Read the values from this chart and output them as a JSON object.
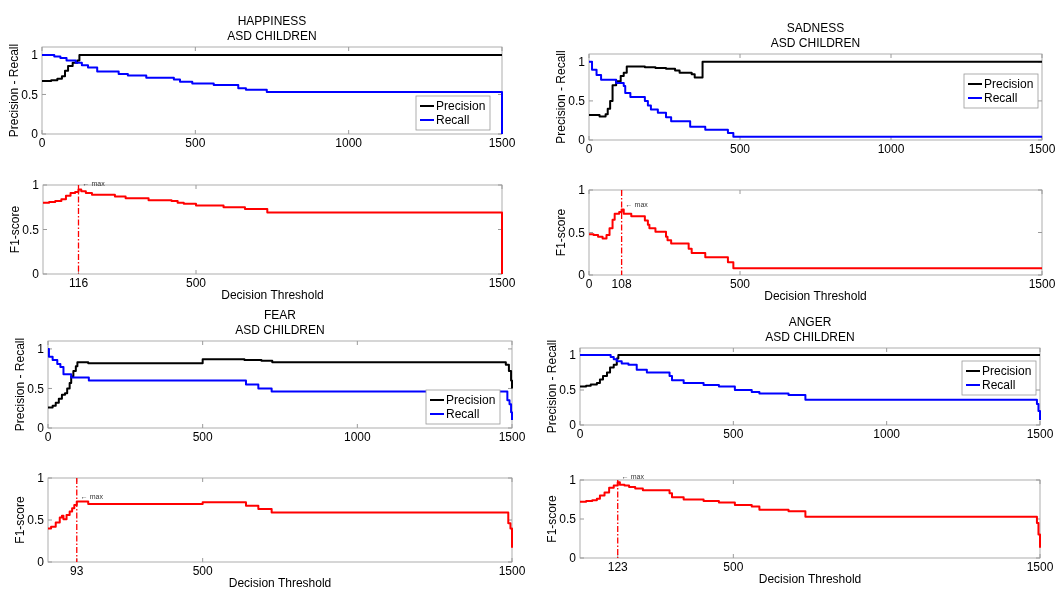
{
  "chart_data": [
    {
      "type": "step",
      "title": "HAPPINESS",
      "subtitle": "ASD CHILDREN",
      "ylabel": "Precision - Recall",
      "xlim": [
        0,
        1500
      ],
      "ylim": [
        0,
        1.1
      ],
      "xticks": [
        0,
        500,
        1000,
        1500
      ],
      "yticks": [
        0,
        0.5,
        1
      ],
      "legend": "bottom right",
      "series": [
        {
          "name": "Precision",
          "color": "#000000",
          "x": [
            0,
            30,
            50,
            65,
            75,
            85,
            100,
            115,
            122,
            1500
          ],
          "values": [
            0.67,
            0.68,
            0.7,
            0.73,
            0.8,
            0.86,
            0.9,
            0.93,
            1,
            1
          ]
        },
        {
          "name": "Recall",
          "color": "#0000ff",
          "x": [
            0,
            40,
            60,
            80,
            110,
            130,
            150,
            180,
            250,
            280,
            340,
            430,
            450,
            490,
            560,
            640,
            665,
            733,
            1500
          ],
          "values": [
            1,
            0.98,
            0.96,
            0.93,
            0.9,
            0.87,
            0.84,
            0.79,
            0.76,
            0.74,
            0.71,
            0.69,
            0.66,
            0.64,
            0.62,
            0.58,
            0.56,
            0.53,
            0
          ]
        }
      ]
    },
    {
      "type": "step",
      "ylabel": "F1-score",
      "xlabel": "Decision Threshold",
      "xlim": [
        0,
        1500
      ],
      "ylim": [
        0,
        1
      ],
      "xticks": [
        116,
        500,
        1500
      ],
      "yticks": [
        0,
        0.5,
        1
      ],
      "ref_lines": [
        {
          "axis": "x",
          "value": 116,
          "color": "#ff0000",
          "line_style": "dashdot"
        }
      ],
      "annotations": [
        {
          "text": "← max",
          "x": 116,
          "y": 0.95
        }
      ],
      "series": [
        {
          "color": "#ff0000",
          "x": [
            0,
            20,
            40,
            60,
            75,
            90,
            105,
            116,
            125,
            140,
            160,
            235,
            270,
            345,
            420,
            440,
            460,
            500,
            590,
            660,
            733,
            1500
          ],
          "values": [
            0.8,
            0.81,
            0.82,
            0.84,
            0.88,
            0.91,
            0.92,
            0.95,
            0.93,
            0.91,
            0.89,
            0.87,
            0.85,
            0.83,
            0.82,
            0.8,
            0.79,
            0.77,
            0.75,
            0.73,
            0.69,
            0
          ]
        }
      ]
    },
    {
      "type": "step",
      "title": "SADNESS",
      "subtitle": "ASD CHILDREN",
      "ylabel": "Precision - Recall",
      "xlim": [
        0,
        1500
      ],
      "ylim": [
        0,
        1.1
      ],
      "xticks": [
        0,
        500,
        1000,
        1500
      ],
      "yticks": [
        0,
        0.5,
        1
      ],
      "legend": "right",
      "series": [
        {
          "name": "Precision",
          "color": "#000000",
          "x": [
            0,
            35,
            55,
            62,
            70,
            78,
            90,
            105,
            115,
            125,
            185,
            220,
            255,
            285,
            300,
            340,
            350,
            376,
            1500
          ],
          "values": [
            0.32,
            0.3,
            0.33,
            0.4,
            0.5,
            0.7,
            0.75,
            0.82,
            0.86,
            0.94,
            0.93,
            0.92,
            0.91,
            0.89,
            0.86,
            0.84,
            0.8,
            1,
            1
          ]
        },
        {
          "name": "Recall",
          "color": "#0000ff",
          "x": [
            0,
            10,
            25,
            40,
            90,
            115,
            120,
            137,
            185,
            195,
            205,
            228,
            255,
            272,
            335,
            385,
            460,
            478,
            1500
          ],
          "values": [
            1,
            0.9,
            0.83,
            0.77,
            0.73,
            0.69,
            0.6,
            0.55,
            0.5,
            0.44,
            0.39,
            0.35,
            0.29,
            0.24,
            0.17,
            0.13,
            0.09,
            0.04,
            0.04
          ]
        }
      ]
    },
    {
      "type": "step",
      "ylabel": "F1-score",
      "xlabel": "Decision Threshold",
      "xlim": [
        0,
        1500
      ],
      "ylim": [
        0,
        1
      ],
      "xticks": [
        0,
        108,
        500,
        1500
      ],
      "yticks": [
        0,
        0.5,
        1
      ],
      "ref_lines": [
        {
          "axis": "x",
          "value": 108,
          "color": "#ff0000",
          "line_style": "dashdot"
        }
      ],
      "annotations": [
        {
          "text": "← max",
          "x": 108,
          "y": 0.77
        }
      ],
      "series": [
        {
          "color": "#ff0000",
          "x": [
            0,
            15,
            30,
            45,
            58,
            68,
            78,
            85,
            100,
            108,
            115,
            140,
            185,
            195,
            200,
            220,
            255,
            260,
            272,
            330,
            340,
            385,
            460,
            478,
            1500
          ],
          "values": [
            0.48,
            0.47,
            0.45,
            0.43,
            0.47,
            0.55,
            0.65,
            0.72,
            0.74,
            0.77,
            0.72,
            0.69,
            0.64,
            0.59,
            0.55,
            0.51,
            0.45,
            0.41,
            0.37,
            0.31,
            0.26,
            0.21,
            0.15,
            0.08,
            0.08
          ]
        }
      ]
    },
    {
      "type": "step",
      "title": "FEAR",
      "subtitle": "ASD CHILDREN",
      "ylabel": "Precision - Recall",
      "xlim": [
        0,
        1500
      ],
      "ylim": [
        0,
        1.1
      ],
      "xticks": [
        0,
        500,
        1000,
        1500
      ],
      "yticks": [
        0,
        0.5,
        1
      ],
      "legend": "bottom right",
      "series": [
        {
          "name": "Precision",
          "color": "#000000",
          "x": [
            0,
            15,
            25,
            35,
            45,
            55,
            62,
            70,
            75,
            82,
            90,
            95,
            130,
            500,
            635,
            690,
            725,
            1480,
            1490,
            1497,
            1500
          ],
          "values": [
            0.26,
            0.28,
            0.32,
            0.37,
            0.42,
            0.44,
            0.5,
            0.57,
            0.65,
            0.72,
            0.78,
            0.83,
            0.82,
            0.87,
            0.86,
            0.85,
            0.83,
            0.8,
            0.72,
            0.6,
            0.5
          ]
        },
        {
          "name": "Recall",
          "color": "#0000ff",
          "x": [
            0,
            3,
            15,
            30,
            40,
            50,
            75,
            132,
            640,
            680,
            723,
            1485,
            1492,
            1497,
            1500
          ],
          "values": [
            1,
            0.9,
            0.86,
            0.81,
            0.77,
            0.68,
            0.64,
            0.6,
            0.55,
            0.5,
            0.46,
            0.35,
            0.3,
            0.2,
            0.1
          ]
        }
      ]
    },
    {
      "type": "step",
      "ylabel": "F1-score",
      "xlabel": "Decision Threshold",
      "xlim": [
        0,
        1500
      ],
      "ylim": [
        0,
        1
      ],
      "xticks": [
        93,
        500,
        1500
      ],
      "yticks": [
        0,
        0.5,
        1
      ],
      "ref_lines": [
        {
          "axis": "x",
          "value": 93,
          "color": "#ff0000",
          "line_style": "dashdot"
        }
      ],
      "annotations": [
        {
          "text": "← max",
          "x": 93,
          "y": 0.72
        }
      ],
      "series": [
        {
          "color": "#ff0000",
          "x": [
            0,
            10,
            25,
            38,
            45,
            50,
            60,
            70,
            78,
            85,
            93,
            130,
            500,
            640,
            680,
            723,
            1488,
            1495,
            1500
          ],
          "values": [
            0.4,
            0.42,
            0.47,
            0.53,
            0.55,
            0.51,
            0.56,
            0.6,
            0.64,
            0.68,
            0.72,
            0.69,
            0.71,
            0.67,
            0.63,
            0.59,
            0.46,
            0.4,
            0.17
          ]
        }
      ]
    },
    {
      "type": "step",
      "title": "ANGER",
      "subtitle": "ASD CHILDREN",
      "ylabel": "Precision - Recall",
      "xlim": [
        0,
        1500
      ],
      "ylim": [
        0,
        1.1
      ],
      "xticks": [
        0,
        500,
        1000,
        1500
      ],
      "yticks": [
        0,
        0.5,
        1
      ],
      "legend": "top right",
      "series": [
        {
          "name": "Precision",
          "color": "#000000",
          "x": [
            0,
            20,
            35,
            55,
            65,
            75,
            88,
            98,
            110,
            120,
            125,
            1500
          ],
          "values": [
            0.55,
            0.56,
            0.58,
            0.6,
            0.65,
            0.7,
            0.75,
            0.82,
            0.86,
            0.95,
            1,
            1
          ]
        },
        {
          "name": "Recall",
          "color": "#0000ff",
          "x": [
            0,
            100,
            110,
            120,
            136,
            158,
            185,
            218,
            292,
            300,
            338,
            403,
            453,
            505,
            560,
            585,
            680,
            735,
            1490,
            1495,
            1500
          ],
          "values": [
            1,
            0.97,
            0.94,
            0.91,
            0.88,
            0.86,
            0.79,
            0.75,
            0.7,
            0.64,
            0.6,
            0.57,
            0.55,
            0.5,
            0.47,
            0.45,
            0.43,
            0.36,
            0.3,
            0.2,
            0.07
          ]
        }
      ]
    },
    {
      "type": "step",
      "ylabel": "F1-score",
      "xlabel": "Decision Threshold",
      "xlim": [
        0,
        1500
      ],
      "ylim": [
        0,
        1
      ],
      "xticks": [
        123,
        500,
        1500
      ],
      "yticks": [
        0,
        0.5,
        1
      ],
      "ref_lines": [
        {
          "axis": "x",
          "value": 123,
          "color": "#ff0000",
          "line_style": "dashdot"
        }
      ],
      "annotations": [
        {
          "text": "← max",
          "x": 123,
          "y": 0.97
        }
      ],
      "series": [
        {
          "color": "#ff0000",
          "x": [
            0,
            20,
            40,
            55,
            65,
            80,
            95,
            110,
            123,
            130,
            145,
            160,
            180,
            205,
            292,
            300,
            338,
            403,
            453,
            505,
            560,
            585,
            680,
            735,
            1490,
            1495,
            1500
          ],
          "values": [
            0.72,
            0.73,
            0.74,
            0.76,
            0.8,
            0.84,
            0.9,
            0.93,
            0.97,
            0.94,
            0.93,
            0.91,
            0.89,
            0.87,
            0.83,
            0.78,
            0.75,
            0.73,
            0.71,
            0.68,
            0.66,
            0.62,
            0.6,
            0.53,
            0.45,
            0.3,
            0.13
          ]
        }
      ]
    }
  ]
}
